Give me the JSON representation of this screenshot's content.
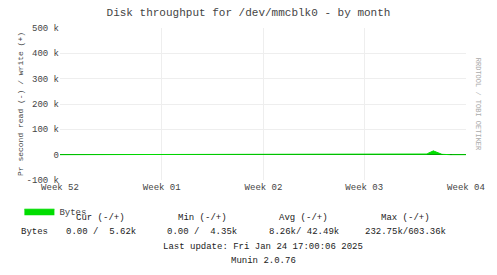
{
  "chart_data": {
    "type": "area",
    "title": "Disk throughput for /dev/mmcblk0 - by month",
    "ylabel": "Pr second read (-) / write (+)",
    "categories": [
      "Week 52",
      null,
      null,
      null,
      null,
      null,
      null,
      null,
      null,
      null,
      null,
      null,
      null,
      null,
      null,
      null,
      null,
      null,
      null,
      null,
      null,
      null,
      null,
      null,
      null,
      null,
      null,
      null,
      null,
      null,
      null,
      null,
      null,
      null,
      null,
      null,
      null,
      null,
      null,
      null,
      null,
      null,
      null,
      null,
      null,
      null,
      null,
      null,
      null,
      null,
      null,
      null,
      null,
      null,
      null,
      null,
      null,
      null,
      null,
      null,
      null,
      null,
      null,
      null,
      null,
      null,
      null,
      null,
      null,
      null,
      null,
      null,
      null,
      null,
      null,
      null,
      null,
      null,
      null,
      null,
      null,
      null,
      null,
      null,
      null,
      null,
      null,
      null,
      null,
      null,
      null,
      null,
      null,
      null,
      null,
      null,
      null,
      null,
      null,
      null,
      "Week 01",
      null,
      null,
      null,
      null,
      null,
      null,
      null,
      null,
      null,
      null,
      null,
      null,
      null,
      null,
      null,
      null,
      null,
      null,
      null,
      null,
      null,
      null,
      null,
      null,
      null,
      null,
      null,
      null,
      null,
      null,
      null,
      null,
      null,
      null,
      null,
      null,
      null,
      null,
      null,
      null,
      null,
      null,
      null,
      null,
      null,
      null,
      null,
      null,
      null,
      null,
      null,
      null,
      null,
      null,
      null,
      null,
      null,
      null,
      null,
      null,
      null,
      null,
      null,
      null,
      null,
      null,
      null,
      null,
      null,
      null,
      null,
      null,
      null,
      null,
      null,
      null,
      null,
      null,
      null,
      null,
      null,
      null,
      null,
      null,
      null,
      null,
      null,
      null,
      null,
      null,
      null,
      null,
      null,
      null,
      null,
      null,
      null,
      null,
      null,
      "Week 02",
      null,
      null,
      null,
      null,
      null,
      null,
      null,
      null,
      null,
      null,
      null,
      null,
      null,
      null,
      null,
      null,
      null,
      null,
      null,
      null,
      null,
      null,
      null,
      null,
      null,
      null,
      null,
      null,
      null,
      null,
      null,
      null,
      null,
      null,
      null,
      null,
      null,
      null,
      null,
      null,
      null,
      null,
      null,
      null,
      null,
      null,
      null,
      null,
      null,
      null,
      null,
      null,
      null,
      null,
      null,
      null,
      null,
      null,
      null,
      null,
      null,
      null,
      null,
      null,
      null,
      null,
      null,
      null,
      null,
      null,
      null,
      null,
      null,
      null,
      null,
      null,
      null,
      null,
      null,
      null,
      null,
      null,
      null,
      null,
      null,
      null,
      null,
      null,
      null,
      null,
      null,
      null,
      null,
      null,
      null,
      null,
      null,
      null,
      "Week 03",
      null,
      null,
      null,
      null,
      null,
      null,
      null,
      null,
      null,
      null,
      null,
      null,
      null,
      null,
      null,
      null,
      null,
      null,
      null,
      null,
      null,
      null,
      null,
      null,
      null,
      null,
      null,
      null,
      null,
      null,
      null,
      null,
      null,
      null,
      null,
      null,
      null,
      null,
      null,
      null,
      null,
      null,
      null,
      null,
      null,
      null,
      null,
      null,
      null,
      null,
      null,
      null,
      null,
      null,
      null,
      null,
      null,
      null,
      null,
      null,
      null,
      null,
      null,
      null,
      null,
      null,
      null,
      null,
      null,
      null,
      null,
      null,
      null,
      null,
      null,
      null,
      null,
      null,
      null,
      null,
      null,
      null,
      null,
      null,
      null,
      null,
      null,
      null,
      null,
      null,
      null,
      null,
      null,
      null,
      null,
      null,
      null,
      null,
      null,
      "Week 04"
    ],
    "series": [
      {
        "name": "Bytes",
        "color": "#00dd00",
        "values": [
          0,
          0,
          0,
          0,
          0,
          0,
          0,
          0,
          0,
          0,
          0,
          0,
          0,
          0,
          0,
          0,
          0,
          0,
          0,
          0,
          0,
          0,
          0,
          0,
          0,
          0,
          0,
          0,
          0,
          0,
          0,
          0,
          0,
          0,
          0,
          0,
          0,
          0,
          0,
          0,
          0,
          0,
          0,
          0,
          0,
          0,
          0,
          0,
          0,
          0,
          0,
          0,
          0,
          0,
          0,
          0,
          0,
          0,
          0,
          0,
          0,
          0,
          0,
          0,
          0,
          0,
          0,
          0,
          0,
          0,
          0,
          0,
          0,
          0,
          0,
          0,
          0,
          0,
          0,
          0,
          0,
          0,
          0,
          0,
          0,
          0,
          0,
          0,
          0,
          0,
          0,
          0,
          0,
          0,
          0,
          0,
          0,
          0,
          0,
          0,
          0,
          0,
          0,
          0,
          0,
          0,
          0,
          0,
          0,
          0,
          0,
          0,
          0,
          0,
          0,
          0,
          0,
          0,
          0,
          0,
          0,
          0,
          0,
          0,
          0,
          0,
          0,
          0,
          0,
          0,
          0,
          0,
          0,
          0,
          0,
          0,
          0,
          0,
          0,
          0,
          0,
          0,
          0,
          0,
          0,
          0,
          0,
          0,
          0,
          0,
          0,
          0,
          0,
          0,
          0,
          0,
          0,
          0,
          0,
          0,
          0,
          0,
          0,
          0,
          0,
          0,
          0,
          0,
          0,
          0,
          0,
          0,
          0,
          0,
          0,
          0,
          0,
          0,
          0,
          0,
          0,
          0,
          0,
          0,
          0,
          0,
          0,
          0,
          0,
          0,
          0,
          0,
          0,
          0,
          0,
          0,
          0,
          0,
          0,
          0,
          0,
          0,
          0,
          0,
          0,
          0,
          0,
          0,
          0,
          0,
          0,
          0,
          0,
          0,
          0,
          0,
          0,
          0,
          0,
          0,
          0,
          0,
          0,
          0,
          0,
          0,
          0,
          0,
          0,
          0,
          0,
          0,
          0,
          0,
          0,
          0,
          0,
          0,
          0,
          0,
          0,
          0,
          0,
          0,
          0,
          0,
          0,
          0,
          0,
          0,
          0,
          0,
          0,
          0,
          0,
          0,
          0,
          0,
          0,
          0,
          0,
          0,
          0,
          0,
          0,
          0,
          0,
          0,
          0,
          0,
          0,
          0,
          0,
          0,
          0,
          0,
          0,
          0,
          0,
          0,
          0,
          0,
          0,
          0,
          0,
          0,
          0,
          0,
          0,
          0,
          0,
          0,
          0,
          0,
          0,
          0,
          0,
          0,
          0,
          0,
          0,
          0,
          0,
          0,
          0,
          0,
          0,
          0,
          0,
          0,
          0,
          0,
          0,
          0,
          0,
          0,
          0,
          0,
          0,
          0,
          0,
          0,
          0,
          0,
          0,
          0,
          0,
          0,
          0,
          0,
          0,
          0,
          0,
          0,
          0,
          0,
          0,
          0,
          0,
          0,
          0,
          0,
          0,
          0,
          0,
          0,
          0,
          0,
          0,
          0,
          0,
          0,
          0,
          0,
          0,
          0,
          0,
          0,
          500,
          1200,
          2500,
          4000,
          6000,
          8000,
          10000,
          12000,
          14000,
          15000,
          13000,
          11000,
          9000,
          7500,
          6000,
          4500,
          3200,
          2000,
          1200,
          700,
          400,
          200,
          100,
          50,
          20,
          0,
          0,
          0,
          0,
          0,
          0,
          0,
          0,
          0,
          0,
          0,
          0,
          0,
          0,
          0,
          0,
          0
        ]
      }
    ],
    "ylim": [
      -100000,
      500000
    ],
    "yticks": [
      {
        "value": -100000,
        "label": "-100 k"
      },
      0,
      {
        "value": 100000,
        "label": "100 k"
      },
      {
        "value": 200000,
        "label": "200 k"
      },
      {
        "value": 300000,
        "label": "300 k"
      },
      {
        "value": 400000,
        "label": "400 k"
      },
      {
        "value": 500000,
        "label": "500 k"
      }
    ],
    "grid": true,
    "legend": "bottom left",
    "annotations": [
      [
        "RRDTOOL / TOBI OETIKER"
      ],
      [
        "Cur (-/+)",
        "Min (-/+)",
        "Avg (-/+)",
        "Max (-/+)"
      ],
      [
        "Bytes",
        "0.00 /  5.62k",
        "0.00 /  4.35k",
        "8.26k/ 42.49k",
        "232.75k/603.36k"
      ],
      [
        "Last update: Fri Jan 24 17:00:06 2025"
      ],
      [
        "Munin 2.0.76"
      ]
    ]
  }
}
